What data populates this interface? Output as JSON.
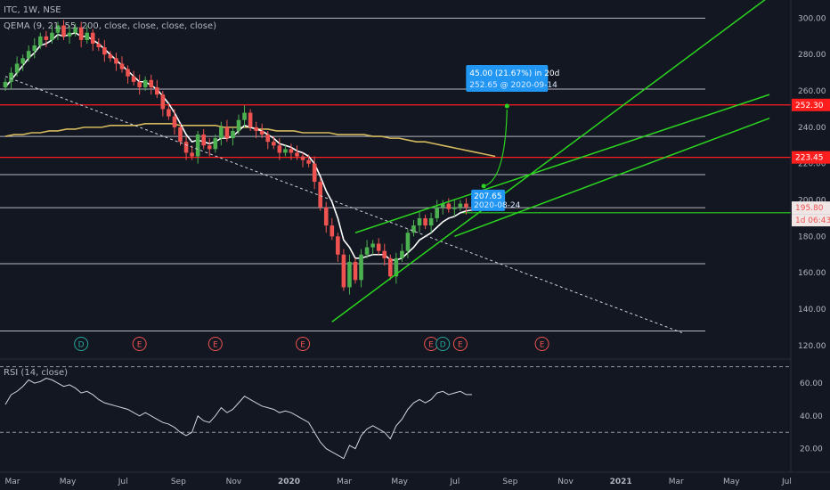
{
  "header": {
    "symbol": "ITC, 1W, NSE",
    "indicator": "QEMA (9, 21, 55, 200, close, close, close, close)",
    "rsi_label": "RSI (14, close)"
  },
  "colors": {
    "background": "#131722",
    "up": "#26a69a",
    "up_candle": "#4caf50",
    "down": "#ef5350",
    "ema_fast": "#ffffff",
    "ema_slow": "#d4b95e",
    "trendline": "#2bd41f",
    "resistance": "#ff1e1e",
    "level": "#d1d4dc",
    "callout": "#2196f3",
    "rsi": "#d1d4dc"
  },
  "chart_data": [
    {
      "type": "candlestick",
      "title": "ITC, 1W, NSE",
      "x_ticks": [
        "Mar",
        "May",
        "Jul",
        "Sep",
        "Nov",
        "2020",
        "Mar",
        "May",
        "Jul",
        "Sep",
        "Nov",
        "2021",
        "Mar",
        "May",
        "Jul"
      ],
      "y_ticks": [
        "120.00",
        "140.00",
        "160.00",
        "180.00",
        "200.00",
        "220.00",
        "240.00",
        "260.00",
        "280.00",
        "300.00"
      ],
      "ylim": [
        115,
        310
      ],
      "closes": [
        265,
        270,
        275,
        278,
        282,
        285,
        290,
        288,
        292,
        296,
        290,
        292,
        295,
        288,
        292,
        286,
        284,
        280,
        278,
        275,
        272,
        268,
        265,
        262,
        266,
        262,
        258,
        250,
        246,
        240,
        232,
        226,
        224,
        236,
        230,
        228,
        234,
        240,
        234,
        238,
        244,
        248,
        240,
        238,
        236,
        232,
        230,
        226,
        228,
        226,
        224,
        222,
        220,
        210,
        196,
        186,
        180,
        170,
        152,
        166,
        156,
        170,
        174,
        176,
        172,
        168,
        158,
        168,
        172,
        182,
        186,
        190,
        186,
        190,
        196,
        198,
        195,
        196,
        198,
        196,
        195.8
      ],
      "ema_fast": [
        262,
        266,
        270,
        274,
        278,
        281,
        285,
        286,
        288,
        291,
        290,
        291,
        292,
        290,
        290,
        288,
        286,
        283,
        280,
        277,
        274,
        271,
        268,
        265,
        265,
        263,
        261,
        257,
        253,
        248,
        242,
        236,
        232,
        233,
        232,
        231,
        232,
        234,
        234,
        235,
        238,
        241,
        240,
        239,
        238,
        236,
        234,
        231,
        230,
        229,
        227,
        226,
        224,
        220,
        213,
        205,
        199,
        190,
        178,
        174,
        168,
        168,
        169,
        170,
        170,
        170,
        167,
        167,
        168,
        171,
        174,
        178,
        180,
        182,
        185,
        188,
        190,
        191,
        193,
        194,
        194.5
      ],
      "ema_slow": [
        235,
        236,
        236,
        237,
        237,
        238,
        238,
        239,
        239,
        240,
        240,
        240,
        241,
        241,
        241,
        241,
        242,
        242,
        242,
        242,
        241,
        241,
        241,
        241,
        241,
        240,
        240,
        240,
        240,
        239,
        239,
        238,
        238,
        238,
        237,
        237,
        237,
        237,
        236,
        236,
        236,
        236,
        235,
        235,
        234,
        234,
        233,
        232,
        232,
        231,
        230,
        229,
        228,
        227,
        226,
        225,
        224
      ],
      "horizontal_levels": [
        300,
        261,
        235,
        214,
        195.8,
        165,
        128
      ],
      "resistance_levels": [
        "252.30",
        "223.45"
      ],
      "price_labels": {
        "last": "195.80",
        "last_countdown": "1d 06:43",
        "target_ray": "252.30"
      },
      "trendlines": [
        {
          "from": [
            56,
            133
          ],
          "to": [
            131,
            312
          ]
        },
        {
          "from": [
            60,
            182
          ],
          "to": [
            131,
            258
          ]
        },
        {
          "from": [
            77,
            180
          ],
          "to": [
            131,
            245
          ]
        }
      ],
      "dotted_line": {
        "from": [
          0,
          268
        ],
        "to": [
          116,
          127
        ]
      },
      "projection": {
        "label": "45.00 (21.67%) in 20d",
        "sublabel": "252.65 @ 2020-09-14",
        "start_price": "207.65",
        "start_date": "2020-08-24",
        "from": [
          82,
          207.65
        ],
        "to": [
          86,
          252.65
        ]
      },
      "event_markers": [
        {
          "label": "D",
          "kind": "dividend",
          "index": 13
        },
        {
          "label": "E",
          "kind": "earnings",
          "index": 23
        },
        {
          "label": "E",
          "kind": "earnings",
          "index": 36
        },
        {
          "label": "E",
          "kind": "earnings",
          "index": 51
        },
        {
          "label": "E",
          "kind": "earnings",
          "index": 73
        },
        {
          "label": "D",
          "kind": "dividend",
          "index": 75
        },
        {
          "label": "E",
          "kind": "earnings",
          "index": 78
        },
        {
          "label": "E",
          "kind": "earnings",
          "index": 92
        }
      ]
    },
    {
      "type": "line",
      "title": "RSI (14, close)",
      "y_ticks": [
        "20.00",
        "40.00",
        "60.00"
      ],
      "ylim": [
        10,
        72
      ],
      "bands": [
        70,
        30
      ],
      "values": [
        47,
        53,
        55,
        58,
        62,
        60,
        61,
        63,
        62,
        60,
        58,
        59,
        57,
        54,
        55,
        53,
        50,
        48,
        47,
        46,
        45,
        44,
        42,
        40,
        42,
        40,
        38,
        36,
        35,
        33,
        30,
        28,
        30,
        40,
        37,
        36,
        40,
        45,
        42,
        44,
        48,
        52,
        50,
        48,
        46,
        45,
        44,
        42,
        43,
        42,
        40,
        38,
        36,
        30,
        24,
        20,
        18,
        16,
        14,
        22,
        20,
        28,
        32,
        34,
        32,
        30,
        26,
        34,
        38,
        44,
        48,
        50,
        48,
        50,
        54,
        55,
        53,
        54,
        55,
        53,
        53
      ]
    }
  ]
}
